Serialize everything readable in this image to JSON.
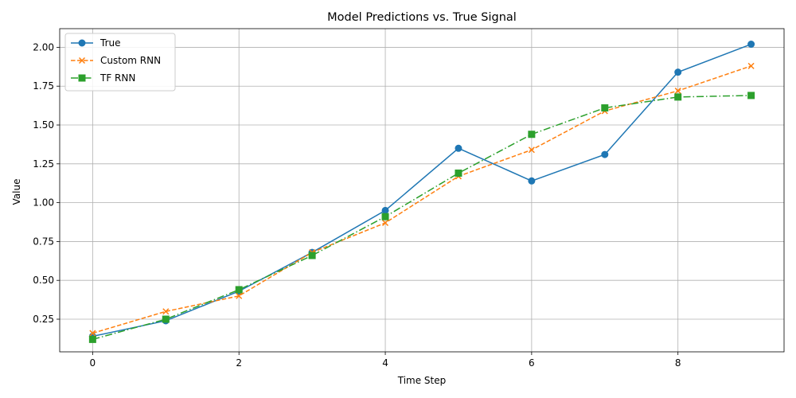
{
  "chart_data": {
    "type": "line",
    "title": "Model Predictions vs. True Signal",
    "xlabel": "Time Step",
    "ylabel": "Value",
    "xlim": [
      -0.45,
      9.45
    ],
    "ylim": [
      0.04,
      2.12
    ],
    "xticks": [
      0,
      2,
      4,
      6,
      8
    ],
    "yticks": [
      0.25,
      0.5,
      0.75,
      1.0,
      1.25,
      1.5,
      1.75,
      2.0
    ],
    "ytick_labels": [
      "0.25",
      "0.50",
      "0.75",
      "1.00",
      "1.25",
      "1.50",
      "1.75",
      "2.00"
    ],
    "grid": true,
    "legend_position": "top-left",
    "x": [
      0,
      1,
      2,
      3,
      4,
      5,
      6,
      7,
      8,
      9
    ],
    "series": [
      {
        "name": "True",
        "color": "#1f77b4",
        "linestyle": "solid",
        "marker": "circle",
        "values": [
          0.14,
          0.24,
          0.43,
          0.68,
          0.95,
          1.35,
          1.14,
          1.31,
          1.84,
          2.02
        ]
      },
      {
        "name": "Custom RNN",
        "color": "#ff7f0e",
        "linestyle": "dashed",
        "marker": "x",
        "values": [
          0.16,
          0.3,
          0.4,
          0.68,
          0.87,
          1.17,
          1.34,
          1.59,
          1.72,
          1.88
        ]
      },
      {
        "name": "TF RNN",
        "color": "#2ca02c",
        "linestyle": "dashdot",
        "marker": "square",
        "values": [
          0.12,
          0.25,
          0.44,
          0.66,
          0.91,
          1.19,
          1.44,
          1.61,
          1.68,
          1.69
        ]
      }
    ]
  }
}
